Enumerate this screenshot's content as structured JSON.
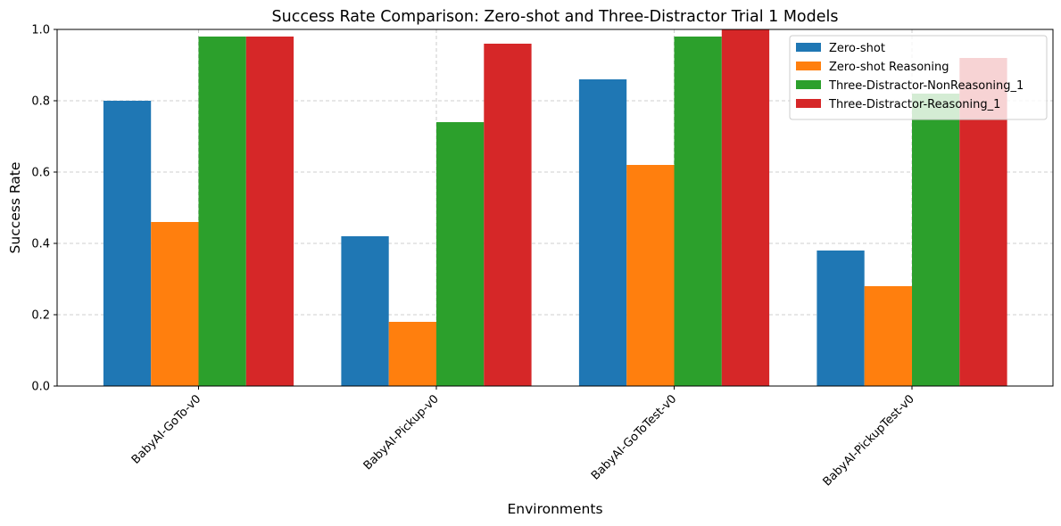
{
  "chart_data": {
    "type": "bar",
    "title": "Success Rate Comparison: Zero-shot and Three-Distractor Trial 1 Models",
    "xlabel": "Environments",
    "ylabel": "Success Rate",
    "ylim": [
      0,
      1.0
    ],
    "yticks": [
      "0.0",
      "0.2",
      "0.4",
      "0.6",
      "0.8",
      "1.0"
    ],
    "grid": true,
    "legend_position": "top-right",
    "categories": [
      "BabyAI-GoTo-v0",
      "BabyAI-Pickup-v0",
      "BabyAI-GoToTest-v0",
      "BabyAI-PickupTest-v0"
    ],
    "series": [
      {
        "name": "Zero-shot",
        "color": "#1f77b4",
        "values": [
          0.8,
          0.42,
          0.86,
          0.38
        ]
      },
      {
        "name": "Zero-shot Reasoning",
        "color": "#ff7f0e",
        "values": [
          0.46,
          0.18,
          0.62,
          0.28
        ]
      },
      {
        "name": "Three-Distractor-NonReasoning_1",
        "color": "#2ca02c",
        "values": [
          0.98,
          0.74,
          0.98,
          0.82
        ]
      },
      {
        "name": "Three-Distractor-Reasoning_1",
        "color": "#d62728",
        "values": [
          0.98,
          0.96,
          1.0,
          0.92
        ]
      }
    ]
  }
}
